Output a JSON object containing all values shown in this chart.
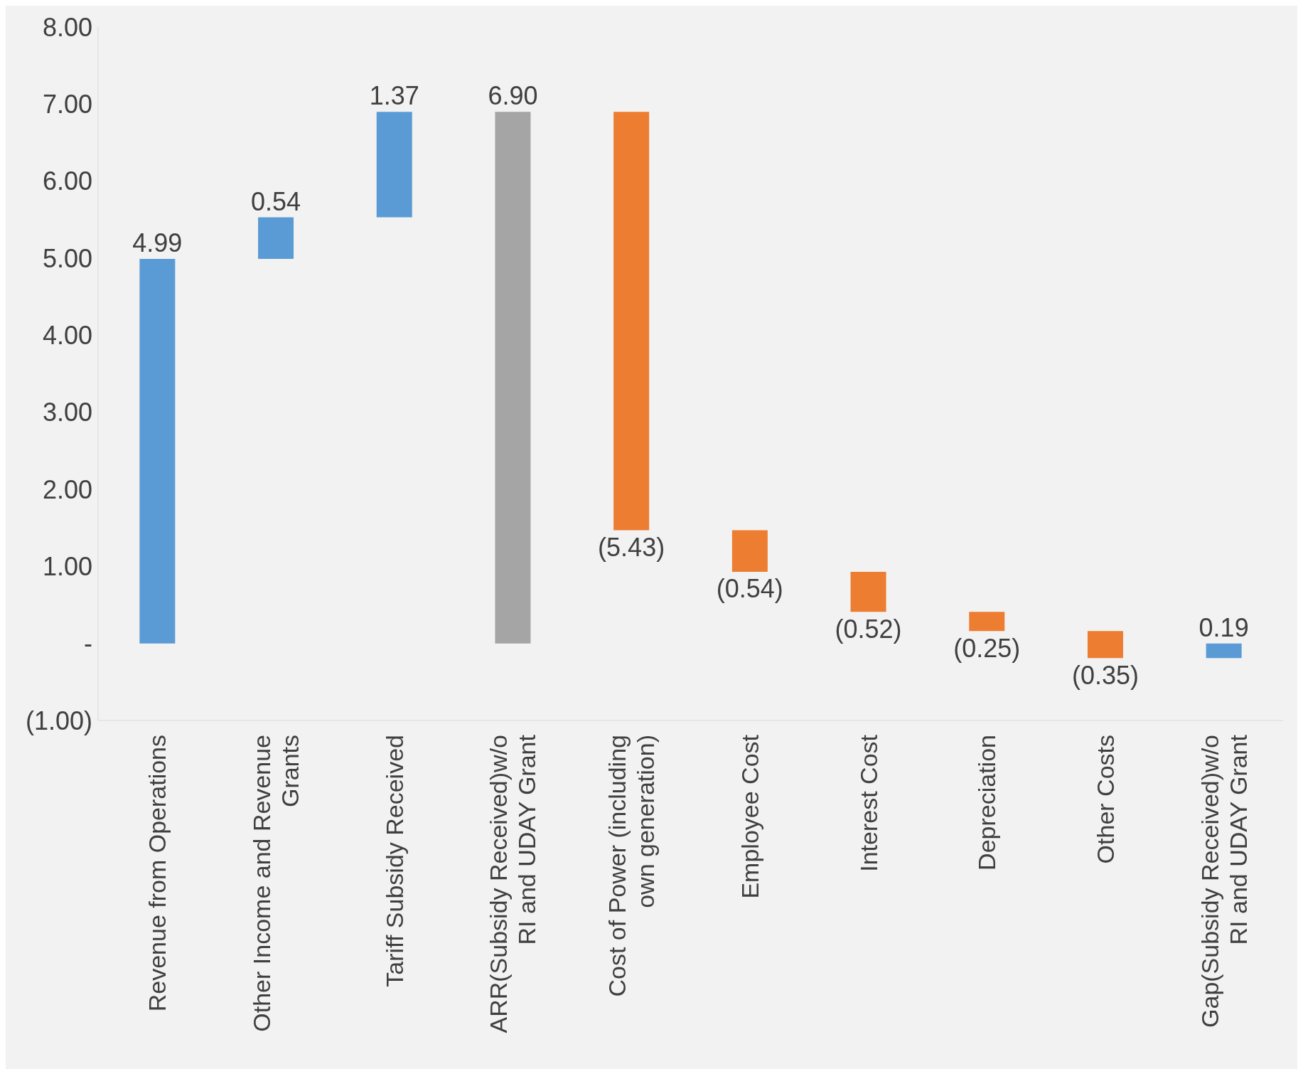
{
  "chart_data": {
    "type": "bar",
    "categories": [
      "Revenue from Operations",
      "Other Income and Revenue Grants",
      "Tariff Subsidy Received",
      "ARR(Subsidy Received)w/o RI and UDAY Grant",
      "Cost of Power (including own generation)",
      "Employee Cost",
      "Interest Cost",
      "Depreciation",
      "Other Costs",
      "Gap(Subsidy Received)w/o RI and UDAY Grant"
    ],
    "values": [
      4.99,
      0.54,
      1.37,
      6.9,
      -5.43,
      -0.54,
      -0.52,
      -0.25,
      -0.35,
      0.19
    ],
    "base": [
      0,
      4.99,
      5.53,
      0,
      6.9,
      1.47,
      0.93,
      0.41,
      0.16,
      -0.19
    ],
    "colors": [
      "#5b9bd5",
      "#5b9bd5",
      "#5b9bd5",
      "#a5a5a5",
      "#ed7d31",
      "#ed7d31",
      "#ed7d31",
      "#ed7d31",
      "#ed7d31",
      "#5b9bd5"
    ],
    "value_labels": [
      "4.99",
      "0.54",
      "1.37",
      "6.90",
      "(5.43)",
      "(0.54)",
      "(0.52)",
      "(0.25)",
      "(0.35)",
      "0.19"
    ],
    "ylim": [
      -1,
      8
    ],
    "yticks": [
      {
        "value": -1,
        "label": "(1.00)"
      },
      {
        "value": 0,
        "label": "-"
      },
      {
        "value": 1,
        "label": "1.00"
      },
      {
        "value": 2,
        "label": "2.00"
      },
      {
        "value": 3,
        "label": "3.00"
      },
      {
        "value": 4,
        "label": "4.00"
      },
      {
        "value": 5,
        "label": "5.00"
      },
      {
        "value": 6,
        "label": "6.00"
      },
      {
        "value": 7,
        "label": "7.00"
      },
      {
        "value": 8,
        "label": "8.00"
      }
    ],
    "grid": false,
    "legend": false
  }
}
